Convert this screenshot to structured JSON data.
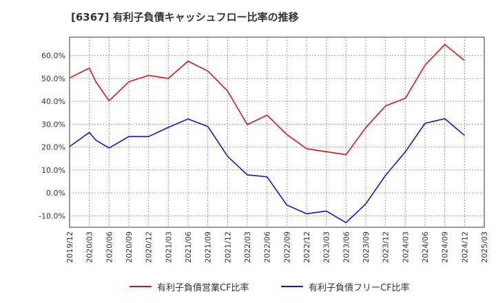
{
  "title": "[6367]  有利子負債キャッシュフロー比率の推移",
  "colors": {
    "series_1": "#dd1111",
    "series_2": "#1111dd",
    "grid": "#999999",
    "axis": "#333333"
  },
  "chart_data": {
    "type": "line",
    "x": [
      "2019/12",
      "2020/03",
      "2020/06",
      "2020/09",
      "2020/12",
      "2021/03",
      "2021/06",
      "2021/09",
      "2021/12",
      "2022/03",
      "2022/06",
      "2022/09",
      "2022/12",
      "2023/03",
      "2023/06",
      "2023/09",
      "2023/12",
      "2024/03",
      "2024/06",
      "2024/09",
      "2024/12",
      "2025/03"
    ],
    "y_ticks": [
      "-10.0%",
      "0.0%",
      "10.0%",
      "20.0%",
      "30.0%",
      "40.0%",
      "50.0%",
      "60.0%"
    ],
    "ylim": [
      -15,
      68
    ],
    "grid": true,
    "legend_position": "bottom",
    "series": [
      {
        "name": "有利子負債営業CF比率",
        "color": "#dd1111",
        "points": [
          [
            "2019/12",
            50.2
          ],
          [
            "2020/03",
            54.5
          ],
          [
            "2020/04",
            48.5
          ],
          [
            "2020/06",
            40.2
          ],
          [
            "2020/09",
            48.5
          ],
          [
            "2020/12",
            51.3
          ],
          [
            "2021/03",
            50.0
          ],
          [
            "2021/06",
            57.5
          ],
          [
            "2021/09",
            53.2
          ],
          [
            "2021/12",
            44.5
          ],
          [
            "2022/03",
            29.8
          ],
          [
            "2022/06",
            34.0
          ],
          [
            "2022/09",
            25.5
          ],
          [
            "2022/12",
            19.3
          ],
          [
            "2023/03",
            18.0
          ],
          [
            "2023/06",
            16.7
          ],
          [
            "2023/09",
            28.5
          ],
          [
            "2023/12",
            38.0
          ],
          [
            "2024/03",
            41.3
          ],
          [
            "2024/06",
            55.8
          ],
          [
            "2024/09",
            64.8
          ],
          [
            "2024/12",
            57.8
          ]
        ]
      },
      {
        "name": "有利子負債フリーCF比率",
        "color": "#1111dd",
        "points": [
          [
            "2019/12",
            20.2
          ],
          [
            "2020/03",
            26.4
          ],
          [
            "2020/04",
            23.0
          ],
          [
            "2020/06",
            19.6
          ],
          [
            "2020/09",
            24.6
          ],
          [
            "2020/12",
            24.6
          ],
          [
            "2021/03",
            28.6
          ],
          [
            "2021/06",
            32.3
          ],
          [
            "2021/09",
            29.0
          ],
          [
            "2021/12",
            16.0
          ],
          [
            "2022/03",
            7.9
          ],
          [
            "2022/06",
            7.0
          ],
          [
            "2022/09",
            -5.3
          ],
          [
            "2022/12",
            -9.1
          ],
          [
            "2023/03",
            -7.9
          ],
          [
            "2023/06",
            -13.0
          ],
          [
            "2023/09",
            -4.8
          ],
          [
            "2023/12",
            7.7
          ],
          [
            "2024/03",
            17.9
          ],
          [
            "2024/06",
            30.4
          ],
          [
            "2024/09",
            32.4
          ],
          [
            "2024/12",
            25.1
          ]
        ]
      }
    ]
  }
}
